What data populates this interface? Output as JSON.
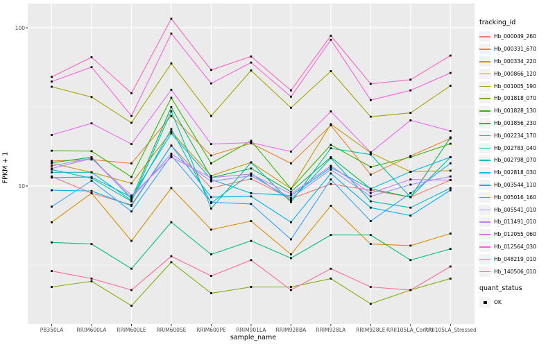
{
  "chart_data": {
    "type": "line",
    "title": "",
    "xlabel": "sample_name",
    "ylabel": "FPKM + 1",
    "y_scale": "log10",
    "y_major_ticks": [
      10,
      100
    ],
    "y_minor_ticks": [
      3.162,
      31.62
    ],
    "ylim": [
      1.3,
      142
    ],
    "grid": true,
    "legend_position": "right",
    "point_shape": "square",
    "point_color": "#000000",
    "categories": [
      "PB350LA",
      "RRIM600LA",
      "RRIM600LE",
      "RRIM600SE",
      "RRIM600PE",
      "RRIM901LA",
      "RRIM928BA",
      "RRIM928LA",
      "RRIM928LE",
      "RRII105LA_Control",
      "RRII105LA_Stressed"
    ],
    "series": [
      {
        "name": "Hb_000049_260",
        "color": "#F8766D",
        "values": [
          11.5,
          9.0,
          7.6,
          18.0,
          9.7,
          11.1,
          8.3,
          10.3,
          9.4,
          8.5,
          10.9
        ]
      },
      {
        "name": "Hb_000331_670",
        "color": "#EA8331",
        "values": [
          14.4,
          14.7,
          13.9,
          27.7,
          15.6,
          18.6,
          13.9,
          24.2,
          11.8,
          15.5,
          20.0
        ]
      },
      {
        "name": "Hb_000334_220",
        "color": "#D89000",
        "values": [
          5.9,
          9.0,
          4.5,
          9.7,
          5.3,
          6.0,
          3.7,
          7.5,
          4.3,
          4.2,
          5.0
        ]
      },
      {
        "name": "Hb_000866_120",
        "color": "#C09B00",
        "values": [
          13.9,
          12.2,
          10.4,
          22.1,
          11.6,
          14.1,
          9.6,
          24.6,
          16.2,
          12.3,
          12.5
        ]
      },
      {
        "name": "Hb_001005_190",
        "color": "#A3A500",
        "values": [
          42.4,
          36.5,
          25.1,
          59.5,
          27.7,
          53.7,
          31.2,
          53.2,
          27.4,
          29.0,
          43.0
        ]
      },
      {
        "name": "Hb_001818_070",
        "color": "#7CAE00",
        "values": [
          2.3,
          2.5,
          1.75,
          3.3,
          2.1,
          2.3,
          2.3,
          2.6,
          1.8,
          2.2,
          2.6
        ]
      },
      {
        "name": "Hb_001828_130",
        "color": "#39B600",
        "values": [
          16.7,
          16.6,
          11.4,
          36.1,
          13.9,
          19.3,
          9.6,
          18.2,
          13.2,
          15.2,
          18.5
        ]
      },
      {
        "name": "Hb_001856_230",
        "color": "#00BB4E",
        "values": [
          14.0,
          15.2,
          8.3,
          31.5,
          11.3,
          12.9,
          9.2,
          15.2,
          9.6,
          8.5,
          20.3
        ]
      },
      {
        "name": "Hb_002234_170",
        "color": "#00BF7D",
        "values": [
          4.4,
          4.3,
          3.0,
          5.9,
          3.7,
          4.5,
          3.5,
          4.9,
          4.9,
          3.4,
          4.0
        ]
      },
      {
        "name": "Hb_002783_040",
        "color": "#00C1A3",
        "values": [
          12.7,
          11.2,
          8.0,
          29.6,
          7.2,
          14.1,
          7.9,
          17.3,
          15.8,
          8.5,
          15.2
        ]
      },
      {
        "name": "Hb_002798_070",
        "color": "#00BFC4",
        "values": [
          12.2,
          12.2,
          8.1,
          22.9,
          7.8,
          12.0,
          8.1,
          15.0,
          8.0,
          7.3,
          9.7
        ]
      },
      {
        "name": "Hb_002818_030",
        "color": "#00BAE0",
        "values": [
          11.3,
          11.4,
          8.5,
          21.5,
          11.0,
          9.0,
          8.7,
          13.1,
          9.6,
          12.3,
          15.2
        ]
      },
      {
        "name": "Hb_003544_110",
        "color": "#00B0F6",
        "values": [
          9.4,
          9.3,
          7.5,
          18.0,
          8.5,
          8.6,
          5.9,
          12.0,
          7.3,
          6.5,
          9.4
        ]
      },
      {
        "name": "Hb_005016_160",
        "color": "#35A2FF",
        "values": [
          7.4,
          10.8,
          6.9,
          15.6,
          7.9,
          7.7,
          4.6,
          11.0,
          6.0,
          9.0,
          13.9
        ]
      },
      {
        "name": "Hb_005541_010",
        "color": "#9590FF",
        "values": [
          13.4,
          15.0,
          8.4,
          16.0,
          10.7,
          11.6,
          8.4,
          12.7,
          8.6,
          10.2,
          11.5
        ]
      },
      {
        "name": "Hb_011491_010",
        "color": "#C77CFF",
        "values": [
          12.9,
          14.9,
          8.7,
          15.2,
          11.3,
          11.9,
          8.9,
          13.4,
          9.0,
          11.0,
          10.9
        ]
      },
      {
        "name": "Hb_012055_060",
        "color": "#E76BF3",
        "values": [
          21.0,
          24.9,
          18.4,
          40.6,
          18.4,
          18.8,
          16.5,
          29.6,
          16.3,
          26.0,
          22.3
        ]
      },
      {
        "name": "Hb_012564_030",
        "color": "#FA62DB",
        "values": [
          45.7,
          56.4,
          27.7,
          92.0,
          44.5,
          60.3,
          36.7,
          84.0,
          34.9,
          40.2,
          51.8
        ]
      },
      {
        "name": "Hb_048219_010",
        "color": "#FF62BC",
        "values": [
          48.9,
          65.1,
          38.6,
          114.0,
          54.1,
          65.8,
          40.2,
          89.0,
          44.2,
          47.0,
          66.7
        ]
      },
      {
        "name": "Hb_140506_010",
        "color": "#FF6A98",
        "values": [
          2.9,
          2.6,
          2.2,
          3.6,
          2.7,
          3.4,
          2.2,
          3.0,
          2.3,
          2.2,
          3.1
        ]
      }
    ],
    "legend": {
      "tracking_title": "tracking_id",
      "quant_title": "quant_status",
      "quant_items": [
        {
          "label": "OK",
          "shape": "square",
          "color": "#000000"
        }
      ]
    }
  },
  "style_colors": {
    "panel_bg": "#EBEBEB",
    "gridline": "#FFFFFF",
    "axis_text": "#4D4D4D",
    "tick_mark": "#333333",
    "legend_key_bg": "#F2F2F2"
  }
}
